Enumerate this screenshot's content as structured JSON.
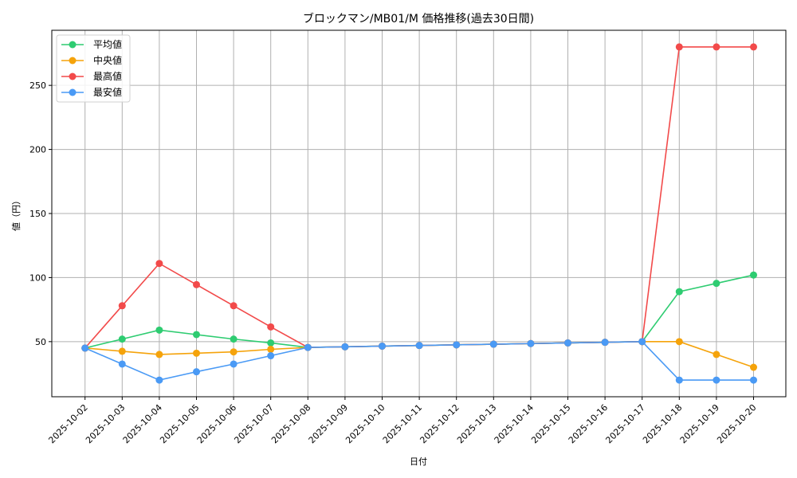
{
  "chart_data": {
    "type": "line",
    "title": "ブロックマン/MB01/M 価格推移(過去30日間)",
    "xlabel": "日付",
    "ylabel": "値（円）",
    "x": [
      "2025-10-02",
      "2025-10-03",
      "2025-10-04",
      "2025-10-05",
      "2025-10-06",
      "2025-10-07",
      "2025-10-08",
      "2025-10-09",
      "2025-10-10",
      "2025-10-11",
      "2025-10-12",
      "2025-10-13",
      "2025-10-14",
      "2025-10-15",
      "2025-10-16",
      "2025-10-17",
      "2025-10-18",
      "2025-10-19",
      "2025-10-20"
    ],
    "ylim": [
      7,
      293
    ],
    "yticks": [
      50,
      100,
      150,
      200,
      250
    ],
    "grid": true,
    "legend_position": "upper left",
    "series": [
      {
        "name": "平均値",
        "color": "#2ecc71",
        "values": [
          45,
          52,
          59,
          55.5,
          52,
          49,
          45.5,
          46,
          46.5,
          47,
          47.5,
          48,
          48.5,
          49,
          49.5,
          50,
          89,
          95.5,
          102
        ]
      },
      {
        "name": "中央値",
        "color": "#f5a30b",
        "values": [
          45,
          42.5,
          40,
          41,
          42,
          44,
          45.5,
          46,
          46.5,
          47,
          47.5,
          48,
          48.5,
          49,
          49.5,
          50,
          50,
          40,
          30
        ]
      },
      {
        "name": "最高値",
        "color": "#f24a4a",
        "values": [
          45,
          78,
          111,
          94.5,
          78,
          61.5,
          45.5,
          46,
          46.5,
          47,
          47.5,
          48,
          48.5,
          49,
          49.5,
          50,
          280,
          280,
          280
        ]
      },
      {
        "name": "最安値",
        "color": "#4a9af5",
        "values": [
          45,
          32.5,
          20,
          26.5,
          32.5,
          39,
          45.5,
          46,
          46.5,
          47,
          47.5,
          48,
          48.5,
          49,
          49.5,
          50,
          20,
          20,
          20
        ]
      }
    ]
  }
}
